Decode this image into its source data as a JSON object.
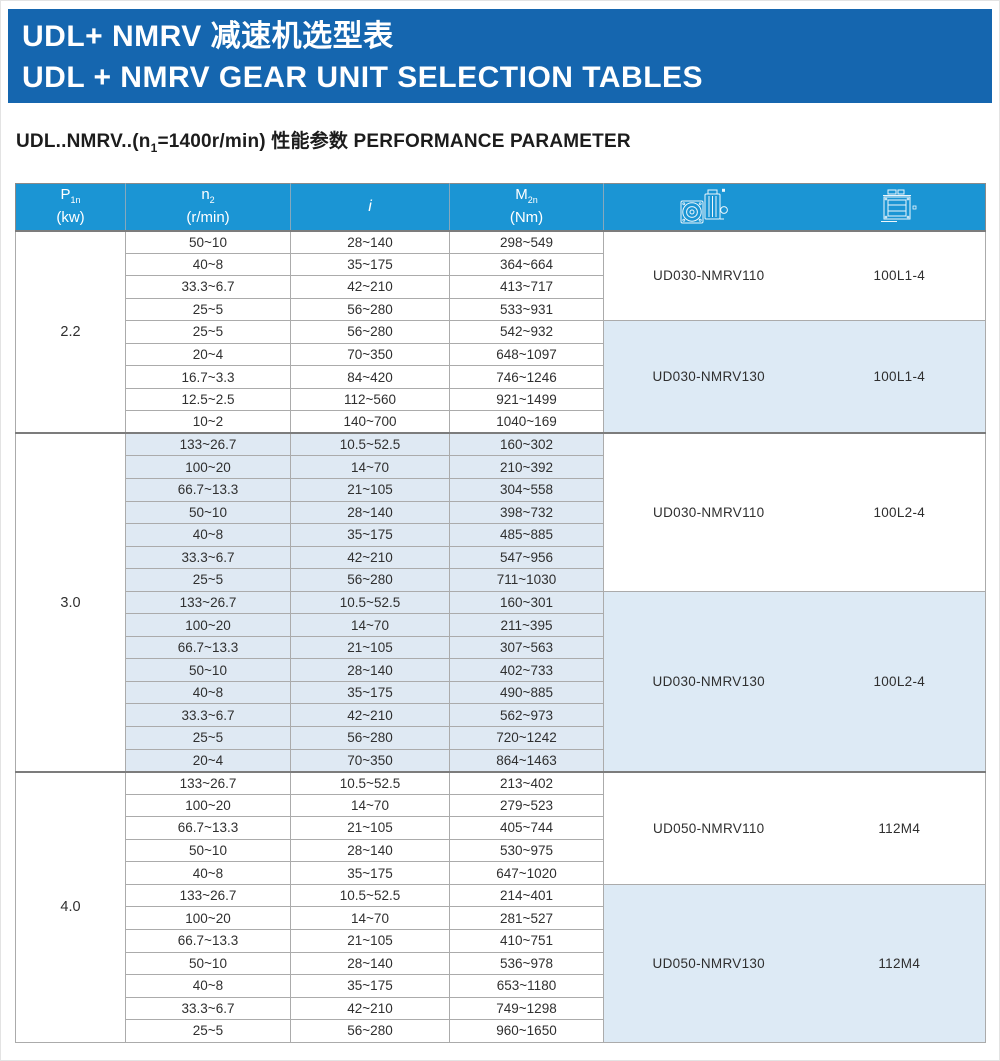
{
  "colors": {
    "banner_bg": "#1566af",
    "table_header_bg": "#1b95d4",
    "row_shade": "#dfe9f3",
    "block_shade": "#ddeaf5",
    "border": "#ababab",
    "border_strong": "#7c7c7c",
    "text": "#2f2f2f"
  },
  "banner": {
    "title_zh": "UDL+ NMRV 减速机选型表",
    "title_en": "UDL + NMRV GEAR UNIT SELECTION TABLES"
  },
  "subtitle": {
    "prefix": "UDL..NMRV..(n",
    "sub": "1",
    "suffix": "=1400r/min) 性能参数 PERFORMANCE PARAMETER"
  },
  "table": {
    "header": {
      "p": {
        "sym": "P",
        "sub": "1n",
        "unit": "(kw)"
      },
      "n2": {
        "sym": "n",
        "sub": "2",
        "unit": "(r/min)"
      },
      "i": {
        "sym": "i"
      },
      "m2n": {
        "sym": "M",
        "sub": "2n",
        "unit": "(Nm)"
      },
      "gear_icon": "gearbox-drawing-icon",
      "motor_icon": "motor-drawing-icon"
    },
    "groups": [
      {
        "p1n": "2.2",
        "shaded": false,
        "blocks": [
          {
            "model": "UD030-NMRV110",
            "motor": "100L1-4",
            "shaded": false,
            "rows": [
              [
                "50~10",
                "28~140",
                "298~549"
              ],
              [
                "40~8",
                "35~175",
                "364~664"
              ],
              [
                "33.3~6.7",
                "42~210",
                "413~717"
              ],
              [
                "25~5",
                "56~280",
                "533~931"
              ]
            ]
          },
          {
            "model": "UD030-NMRV130",
            "motor": "100L1-4",
            "shaded": true,
            "rows": [
              [
                "25~5",
                "56~280",
                "542~932"
              ],
              [
                "20~4",
                "70~350",
                "648~1097"
              ],
              [
                "16.7~3.3",
                "84~420",
                "746~1246"
              ],
              [
                "12.5~2.5",
                "112~560",
                "921~1499"
              ],
              [
                "10~2",
                "140~700",
                "1040~169"
              ]
            ]
          }
        ]
      },
      {
        "p1n": "3.0",
        "shaded": true,
        "blocks": [
          {
            "model": "UD030-NMRV110",
            "motor": "100L2-4",
            "shaded": false,
            "rows": [
              [
                "133~26.7",
                "10.5~52.5",
                "160~302"
              ],
              [
                "100~20",
                "14~70",
                "210~392"
              ],
              [
                "66.7~13.3",
                "21~105",
                "304~558"
              ],
              [
                "50~10",
                "28~140",
                "398~732"
              ],
              [
                "40~8",
                "35~175",
                "485~885"
              ],
              [
                "33.3~6.7",
                "42~210",
                "547~956"
              ],
              [
                "25~5",
                "56~280",
                "711~1030"
              ]
            ]
          },
          {
            "model": "UD030-NMRV130",
            "motor": "100L2-4",
            "shaded": true,
            "rows": [
              [
                "133~26.7",
                "10.5~52.5",
                "160~301"
              ],
              [
                "100~20",
                "14~70",
                "211~395"
              ],
              [
                "66.7~13.3",
                "21~105",
                "307~563"
              ],
              [
                "50~10",
                "28~140",
                "402~733"
              ],
              [
                "40~8",
                "35~175",
                "490~885"
              ],
              [
                "33.3~6.7",
                "42~210",
                "562~973"
              ],
              [
                "25~5",
                "56~280",
                "720~1242"
              ],
              [
                "20~4",
                "70~350",
                "864~1463"
              ]
            ]
          }
        ]
      },
      {
        "p1n": "4.0",
        "shaded": false,
        "blocks": [
          {
            "model": "UD050-NMRV110",
            "motor": "112M4",
            "shaded": false,
            "rows": [
              [
                "133~26.7",
                "10.5~52.5",
                "213~402"
              ],
              [
                "100~20",
                "14~70",
                "279~523"
              ],
              [
                "66.7~13.3",
                "21~105",
                "405~744"
              ],
              [
                "50~10",
                "28~140",
                "530~975"
              ],
              [
                "40~8",
                "35~175",
                "647~1020"
              ]
            ]
          },
          {
            "model": "UD050-NMRV130",
            "motor": "112M4",
            "shaded": true,
            "rows": [
              [
                "133~26.7",
                "10.5~52.5",
                "214~401"
              ],
              [
                "100~20",
                "14~70",
                "281~527"
              ],
              [
                "66.7~13.3",
                "21~105",
                "410~751"
              ],
              [
                "50~10",
                "28~140",
                "536~978"
              ],
              [
                "40~8",
                "35~175",
                "653~1180"
              ],
              [
                "33.3~6.7",
                "42~210",
                "749~1298"
              ],
              [
                "25~5",
                "56~280",
                "960~1650"
              ]
            ]
          }
        ]
      }
    ]
  }
}
